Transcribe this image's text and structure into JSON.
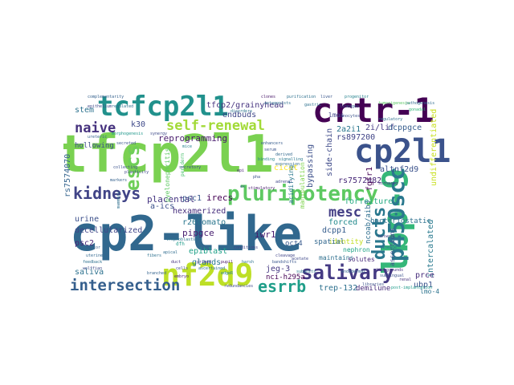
{
  "words": [
    {
      "text": "tfcp2l1",
      "color": "#7ad151"
    },
    {
      "text": "cp2-like",
      "color": "#31688e"
    },
    {
      "text": "crtr-1",
      "color": "#440154"
    },
    {
      "text": "tcfcp2l1",
      "color": "#21918c"
    },
    {
      "text": "cp2l1",
      "color": "#3b528b"
    },
    {
      "text": "lbp-9",
      "color": "#35b779"
    },
    {
      "text": "nf2d9",
      "color": "#bddf26"
    },
    {
      "text": "p450scc",
      "color": "#2a788e"
    },
    {
      "text": "pluripotency",
      "color": "#5ec962"
    },
    {
      "text": "salivary",
      "color": "#443a83"
    },
    {
      "text": "ducts",
      "color": "#2a788e"
    },
    {
      "text": "kidneys",
      "color": "#414487"
    },
    {
      "text": "intersection",
      "color": "#355f8d"
    },
    {
      "text": "esrrb",
      "color": "#1f9e89"
    },
    {
      "text": "escs",
      "color": "#6ece58"
    },
    {
      "text": "self-renewal",
      "color": "#a2da37"
    },
    {
      "text": "naive",
      "color": "#46327e"
    },
    {
      "text": "mesc",
      "color": "#433e85"
    },
    {
      "text": "k30",
      "color": "#3e4989"
    },
    {
      "text": "stem",
      "color": "#2c728e"
    },
    {
      "text": "reprogramming",
      "color": "#481a6c"
    },
    {
      "text": "tfcp2/grainyhead",
      "color": "#46337f"
    },
    {
      "text": "endbuds",
      "color": "#3f4889"
    },
    {
      "text": "2a2i1",
      "color": "#2a768e"
    },
    {
      "text": "2i/lif",
      "color": "#443983"
    },
    {
      "text": "dcppgce",
      "color": "#365c8d"
    },
    {
      "text": "bacteriostatic",
      "color": "#2d708e"
    },
    {
      "text": "undifferentiated",
      "color": "#c8e020"
    },
    {
      "text": "altnf2d9",
      "color": "#3b528b"
    },
    {
      "text": "rs897200",
      "color": "#414487"
    },
    {
      "text": "rs7572482",
      "color": "#482878"
    },
    {
      "text": "side-chain",
      "color": "#3e4a89"
    },
    {
      "text": "bypassing",
      "color": "#3c4f8a"
    },
    {
      "text": "cicat",
      "color": "#fde725"
    },
    {
      "text": "placental",
      "color": "#453581"
    },
    {
      "text": "psc1",
      "color": "#38588c"
    },
    {
      "text": "irecs",
      "color": "#440154"
    },
    {
      "text": "a-ics",
      "color": "#3b518b"
    },
    {
      "text": "hexamerized",
      "color": "#472f7d"
    },
    {
      "text": "forfeiture",
      "color": "#25ab82"
    },
    {
      "text": "fgfr1",
      "color": "#440154"
    },
    {
      "text": "ncoab/aib3",
      "color": "#2e6e8e"
    },
    {
      "text": "forced",
      "color": "#238a8d"
    },
    {
      "text": "dcpp1",
      "color": "#365d8d"
    },
    {
      "text": "identity",
      "color": "#c2df23"
    },
    {
      "text": "rs7574070",
      "color": "#33638d"
    },
    {
      "text": "urine",
      "color": "#3c508b"
    },
    {
      "text": "decellularized",
      "color": "#404688"
    },
    {
      "text": "pipgce",
      "color": "#482071"
    },
    {
      "text": "r26tomato",
      "color": "#2a768e"
    },
    {
      "text": "psc2",
      "color": "#482677"
    },
    {
      "text": "iwr1",
      "color": "#481b6d"
    },
    {
      "text": "epiblast",
      "color": "#1fa188"
    },
    {
      "text": "glands",
      "color": "#2a788e"
    },
    {
      "text": "saliva",
      "color": "#2c718e"
    },
    {
      "text": "jeg-3",
      "color": "#453882"
    },
    {
      "text": "nci-h295a",
      "color": "#440154"
    },
    {
      "text": "trep-132",
      "color": "#2d708e"
    },
    {
      "text": "demilune",
      "color": "#472c7a"
    },
    {
      "text": "intercalated",
      "color": "#29798e"
    },
    {
      "text": "prce",
      "color": "#472d7b"
    },
    {
      "text": "ubp1",
      "color": "#3a538b"
    },
    {
      "text": "lmo-4",
      "color": "#2c738e"
    },
    {
      "text": "maintains",
      "color": "#2e6f8e"
    },
    {
      "text": "spatial",
      "color": "#31678e"
    },
    {
      "text": "oct4",
      "color": "#38598c"
    },
    {
      "text": "solutes",
      "color": "#472a7a"
    },
    {
      "text": "nephron",
      "color": "#20a386"
    },
    {
      "text": "assertions",
      "color": "#3b528b"
    },
    {
      "text": "hollowing",
      "color": "#3d4d8a"
    },
    {
      "text": "manipulation",
      "color": "#7fd34e"
    },
    {
      "text": "acidifying",
      "color": "#2a788e"
    },
    {
      "text": "lmos",
      "color": "#404387"
    },
    {
      "text": "pyelonephritis",
      "color": "#5ec962"
    },
    {
      "text": "secreted",
      "color": "#3a548c"
    },
    {
      "text": "mammary",
      "color": "#2e6f8e"
    },
    {
      "text": "periderm",
      "color": "#4ac16d"
    },
    {
      "text": "dfh",
      "color": "#1e9c89"
    },
    {
      "text": "duct",
      "color": "#46307e"
    },
    {
      "text": "cells",
      "color": "#3f4788"
    },
    {
      "text": "branched",
      "color": "#33628d"
    },
    {
      "text": "apical",
      "color": "#2f6c8e"
    },
    {
      "text": "synergy",
      "color": "#3e4a89"
    },
    {
      "text": "cleavage",
      "color": "#404588"
    },
    {
      "text": "sublingual",
      "color": "#3b528b"
    },
    {
      "text": "trophoblasts",
      "color": "#2b748e"
    },
    {
      "text": "backgrounds",
      "color": "#463480"
    },
    {
      "text": "purification",
      "color": "#2d708e"
    },
    {
      "text": "complementarity",
      "color": "#34618d"
    },
    {
      "text": "clones",
      "color": "#481769"
    },
    {
      "text": "ascertained",
      "color": "#2d708e"
    },
    {
      "text": "libraries",
      "color": "#3b528b"
    },
    {
      "text": "redundancies",
      "color": "#3e4989"
    },
    {
      "text": "post-implantation",
      "color": "#1e9b8a"
    },
    {
      "text": "gonadal",
      "color": "#35b779"
    },
    {
      "text": "primed",
      "color": "#453781"
    },
    {
      "text": "harsh",
      "color": "#2c728e"
    },
    {
      "text": "edgeR",
      "color": "#27808e"
    },
    {
      "text": "regulated",
      "color": "#2d708e"
    },
    {
      "text": "epithelium",
      "color": "#3f4889"
    },
    {
      "text": "markers",
      "color": "#34618d"
    },
    {
      "text": "stimulatory",
      "color": "#481b6d"
    },
    {
      "text": "pathogenesis",
      "color": "#2f6b8e"
    },
    {
      "text": "disorders",
      "color": "#2b758e"
    },
    {
      "text": "lineages",
      "color": "#355f8d"
    },
    {
      "text": "uterine",
      "color": "#31678e"
    },
    {
      "text": "antagonists",
      "color": "#2e6e8e"
    },
    {
      "text": "progenitor",
      "color": "#26828e"
    },
    {
      "text": "ionocytes",
      "color": "#3b528b"
    },
    {
      "text": "gastric",
      "color": "#2c718e"
    },
    {
      "text": "renal",
      "color": "#46337f"
    },
    {
      "text": "endodermal",
      "color": "#33638d"
    },
    {
      "text": "liver",
      "color": "#39568c"
    },
    {
      "text": "signalling",
      "color": "#2a788e"
    },
    {
      "text": "plasticity",
      "color": "#3f4788"
    },
    {
      "text": "conditions",
      "color": "#414487"
    },
    {
      "text": "factor",
      "color": "#365c8d"
    },
    {
      "text": "feedback",
      "color": "#2d708e"
    },
    {
      "text": "embryo",
      "color": "#482173"
    },
    {
      "text": "wolffian",
      "color": "#3e4c8a"
    },
    {
      "text": "derived",
      "color": "#31688e"
    },
    {
      "text": "expression",
      "color": "#2f6b8e"
    },
    {
      "text": "serum",
      "color": "#3a548c"
    },
    {
      "text": "binding",
      "color": "#25848e"
    },
    {
      "text": "morphogenesis",
      "color": "#1f978b"
    },
    {
      "text": "ureteric",
      "color": "#34618d"
    },
    {
      "text": "collecting",
      "color": "#3b528b"
    },
    {
      "text": "network",
      "color": "#433d84"
    },
    {
      "text": "lineage",
      "color": "#2c728e"
    },
    {
      "text": "tumorigenesis",
      "color": "#5cc863"
    },
    {
      "text": "secretory",
      "color": "#3e4a89"
    },
    {
      "text": "adrenal",
      "color": "#404688"
    },
    {
      "text": "enhancers",
      "color": "#365c8d"
    },
    {
      "text": "regulatory",
      "color": "#2e6f8e"
    },
    {
      "text": "scrnaseq",
      "color": "#46327e"
    },
    {
      "text": "subunits",
      "color": "#2a788e"
    },
    {
      "text": "bandshifts",
      "color": "#39568c"
    },
    {
      "text": "acetate",
      "color": "#3f4889"
    },
    {
      "text": "pupil",
      "color": "#471365"
    },
    {
      "text": "fibers",
      "color": "#2d708e"
    },
    {
      "text": "mice",
      "color": "#26828e"
    },
    {
      "text": "pha",
      "color": "#3b528b"
    },
    {
      "text": "epi",
      "color": "#482475"
    },
    {
      "text": "ex",
      "color": "#365c8d"
    }
  ]
}
